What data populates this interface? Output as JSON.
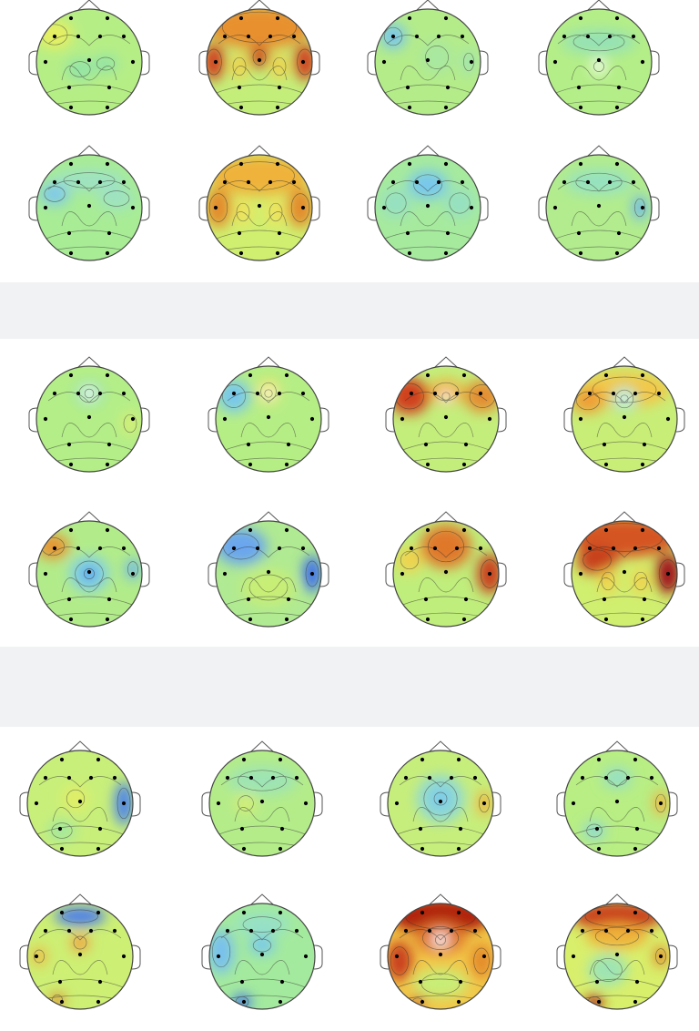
{
  "figure": {
    "panels": [
      {
        "rows": [
          [
            {
              "bg": "#b6ee86",
              "blobs": [
                {
                  "dx": -38,
                  "dy": -30,
                  "rx": 20,
                  "ry": 16,
                  "c": "#e7ef61"
                },
                {
                  "dx": -10,
                  "dy": 8,
                  "rx": 16,
                  "ry": 12,
                  "c": "#93e4a7"
                },
                {
                  "dx": 18,
                  "dy": 2,
                  "rx": 14,
                  "ry": 10,
                  "c": "#93e4a7"
                }
              ]
            },
            {
              "bg": "#c4ee7a",
              "blobs": [
                {
                  "dx": 0,
                  "dy": -38,
                  "rx": 58,
                  "ry": 24,
                  "c": "#e8902e"
                },
                {
                  "dx": -50,
                  "dy": 0,
                  "rx": 12,
                  "ry": 20,
                  "c": "#d0401e"
                },
                {
                  "dx": 50,
                  "dy": 0,
                  "rx": 12,
                  "ry": 20,
                  "c": "#d0401e"
                },
                {
                  "dx": 0,
                  "dy": -5,
                  "rx": 10,
                  "ry": 12,
                  "c": "#c9401c"
                },
                {
                  "dx": -22,
                  "dy": 5,
                  "rx": 10,
                  "ry": 14,
                  "c": "#f2d24c"
                },
                {
                  "dx": 22,
                  "dy": 5,
                  "rx": 10,
                  "ry": 14,
                  "c": "#f2d24c"
                }
              ]
            },
            {
              "bg": "#b4ec8a",
              "blobs": [
                {
                  "dx": -38,
                  "dy": -28,
                  "rx": 14,
                  "ry": 14,
                  "c": "#78c6ec"
                },
                {
                  "dx": 10,
                  "dy": -5,
                  "rx": 18,
                  "ry": 18,
                  "c": "#a8e8a0"
                },
                {
                  "dx": 45,
                  "dy": 0,
                  "rx": 8,
                  "ry": 14,
                  "c": "#a0e4b4"
                }
              ]
            },
            {
              "bg": "#b4ee88",
              "blobs": [
                {
                  "dx": 0,
                  "dy": -22,
                  "rx": 40,
                  "ry": 14,
                  "c": "#96e2b4"
                },
                {
                  "dx": 0,
                  "dy": 5,
                  "rx": 8,
                  "ry": 8,
                  "c": "#ffffff"
                }
              ]
            }
          ],
          [
            {
              "bg": "#a8ec96",
              "blobs": [
                {
                  "dx": -38,
                  "dy": -15,
                  "rx": 16,
                  "ry": 12,
                  "c": "#7ec8ec"
                },
                {
                  "dx": 0,
                  "dy": -30,
                  "rx": 40,
                  "ry": 12,
                  "c": "#9ee2c2"
                },
                {
                  "dx": 30,
                  "dy": -10,
                  "rx": 20,
                  "ry": 12,
                  "c": "#9ee2c2"
                }
              ]
            },
            {
              "bg": "#d0ef70",
              "blobs": [
                {
                  "dx": 0,
                  "dy": -35,
                  "rx": 55,
                  "ry": 22,
                  "c": "#efb23a"
                },
                {
                  "dx": -45,
                  "dy": 0,
                  "rx": 14,
                  "ry": 22,
                  "c": "#e38a2c"
                },
                {
                  "dx": 45,
                  "dy": 0,
                  "rx": 14,
                  "ry": 22,
                  "c": "#e38a2c"
                },
                {
                  "dx": -18,
                  "dy": 5,
                  "rx": 10,
                  "ry": 14,
                  "c": "#f2e25a"
                },
                {
                  "dx": 18,
                  "dy": 5,
                  "rx": 10,
                  "ry": 14,
                  "c": "#f2e25a"
                }
              ]
            },
            {
              "bg": "#a6ea9e",
              "blobs": [
                {
                  "dx": 0,
                  "dy": -25,
                  "rx": 22,
                  "ry": 16,
                  "c": "#78c8ec"
                },
                {
                  "dx": -35,
                  "dy": -5,
                  "rx": 16,
                  "ry": 16,
                  "c": "#96e0c2"
                },
                {
                  "dx": 35,
                  "dy": -5,
                  "rx": 16,
                  "ry": 16,
                  "c": "#96e0c2"
                }
              ]
            },
            {
              "bg": "#b2ec8e",
              "blobs": [
                {
                  "dx": 0,
                  "dy": -28,
                  "rx": 36,
                  "ry": 14,
                  "c": "#96e2c0"
                },
                {
                  "dx": 45,
                  "dy": 0,
                  "rx": 8,
                  "ry": 14,
                  "c": "#6cb6ee"
                }
              ]
            }
          ]
        ]
      },
      {
        "rows": [
          [
            {
              "bg": "#b4ee88",
              "blobs": [
                {
                  "dx": 0,
                  "dy": -28,
                  "rx": 16,
                  "ry": 14,
                  "c": "#96e2b4"
                },
                {
                  "dx": 0,
                  "dy": -28,
                  "rx": 7,
                  "ry": 7,
                  "c": "#ffffff"
                },
                {
                  "dx": 45,
                  "dy": 5,
                  "rx": 10,
                  "ry": 14,
                  "c": "#d4ee76"
                }
              ]
            },
            {
              "bg": "#b6ee86",
              "blobs": [
                {
                  "dx": -38,
                  "dy": -25,
                  "rx": 18,
                  "ry": 18,
                  "c": "#78c8ec"
                },
                {
                  "dx": 0,
                  "dy": -30,
                  "rx": 12,
                  "ry": 14,
                  "c": "#f2e25a"
                },
                {
                  "dx": 0,
                  "dy": -28,
                  "rx": 6,
                  "ry": 6,
                  "c": "#ffffff"
                }
              ]
            },
            {
              "bg": "#c4ee7c",
              "blobs": [
                {
                  "dx": -40,
                  "dy": -25,
                  "rx": 22,
                  "ry": 20,
                  "c": "#d0401e"
                },
                {
                  "dx": 40,
                  "dy": -25,
                  "rx": 20,
                  "ry": 18,
                  "c": "#e48e30"
                },
                {
                  "dx": 0,
                  "dy": -30,
                  "rx": 20,
                  "ry": 14,
                  "c": "#efb23a"
                },
                {
                  "dx": 0,
                  "dy": -25,
                  "rx": 6,
                  "ry": 6,
                  "c": "#ffffff"
                }
              ]
            },
            {
              "bg": "#c8ee78",
              "blobs": [
                {
                  "dx": 0,
                  "dy": -32,
                  "rx": 50,
                  "ry": 20,
                  "c": "#f2c848"
                },
                {
                  "dx": -40,
                  "dy": -20,
                  "rx": 18,
                  "ry": 14,
                  "c": "#ef9e34"
                },
                {
                  "dx": 0,
                  "dy": -22,
                  "rx": 14,
                  "ry": 14,
                  "c": "#9ee2c2"
                },
                {
                  "dx": 0,
                  "dy": -22,
                  "rx": 6,
                  "ry": 6,
                  "c": "#ffffff"
                }
              ]
            }
          ],
          [
            {
              "bg": "#b2ec8a",
              "blobs": [
                {
                  "dx": -40,
                  "dy": -30,
                  "rx": 18,
                  "ry": 14,
                  "c": "#e89432"
                },
                {
                  "dx": 0,
                  "dy": 0,
                  "rx": 22,
                  "ry": 20,
                  "c": "#84d2e4"
                },
                {
                  "dx": 0,
                  "dy": 0,
                  "rx": 8,
                  "ry": 8,
                  "c": "#4696ee"
                },
                {
                  "dx": 48,
                  "dy": -5,
                  "rx": 8,
                  "ry": 12,
                  "c": "#6cb6ee"
                }
              ]
            },
            {
              "bg": "#b0ea92",
              "blobs": [
                {
                  "dx": -30,
                  "dy": -30,
                  "rx": 28,
                  "ry": 20,
                  "c": "#6aa6ee"
                },
                {
                  "dx": 48,
                  "dy": 0,
                  "rx": 10,
                  "ry": 20,
                  "c": "#3a6aee"
                },
                {
                  "dx": 0,
                  "dy": 15,
                  "rx": 30,
                  "ry": 20,
                  "c": "#c8ee76"
                }
              ]
            },
            {
              "bg": "#c0ee7c",
              "blobs": [
                {
                  "dx": 0,
                  "dy": -30,
                  "rx": 28,
                  "ry": 24,
                  "c": "#e0782a"
                },
                {
                  "dx": 48,
                  "dy": 0,
                  "rx": 14,
                  "ry": 22,
                  "c": "#c9401c"
                },
                {
                  "dx": -40,
                  "dy": -15,
                  "rx": 14,
                  "ry": 14,
                  "c": "#f2d24c"
                }
              ]
            },
            {
              "bg": "#d0ef70",
              "blobs": [
                {
                  "dx": 0,
                  "dy": -40,
                  "rx": 60,
                  "ry": 22,
                  "c": "#d55424"
                },
                {
                  "dx": -30,
                  "dy": -15,
                  "rx": 22,
                  "ry": 16,
                  "c": "#c7401c"
                },
                {
                  "dx": 48,
                  "dy": 0,
                  "rx": 14,
                  "ry": 22,
                  "c": "#a0141a"
                },
                {
                  "dx": -18,
                  "dy": 8,
                  "rx": 10,
                  "ry": 14,
                  "c": "#f2d24c"
                },
                {
                  "dx": 18,
                  "dy": 8,
                  "rx": 10,
                  "ry": 14,
                  "c": "#f2d24c"
                }
              ]
            }
          ]
        ]
      },
      {
        "rows": [
          [
            {
              "bg": "#c8ef7a",
              "blobs": [
                {
                  "dx": 48,
                  "dy": 0,
                  "rx": 10,
                  "ry": 24,
                  "c": "#4a80ee"
                },
                {
                  "dx": -5,
                  "dy": -5,
                  "rx": 14,
                  "ry": 14,
                  "c": "#e2ee66"
                },
                {
                  "dx": -20,
                  "dy": 30,
                  "rx": 16,
                  "ry": 12,
                  "c": "#a4e89e"
                }
              ]
            },
            {
              "bg": "#b4ec8a",
              "blobs": [
                {
                  "dx": 0,
                  "dy": -25,
                  "rx": 38,
                  "ry": 16,
                  "c": "#9ee4b4"
                },
                {
                  "dx": -18,
                  "dy": 0,
                  "rx": 12,
                  "ry": 12,
                  "c": "#d4ee76"
                }
              ]
            },
            {
              "bg": "#c6ee7c",
              "blobs": [
                {
                  "dx": 0,
                  "dy": -5,
                  "rx": 26,
                  "ry": 26,
                  "c": "#8ed8d6"
                },
                {
                  "dx": 0,
                  "dy": -5,
                  "rx": 10,
                  "ry": 10,
                  "c": "#78c8ec"
                },
                {
                  "dx": 48,
                  "dy": 0,
                  "rx": 8,
                  "ry": 14,
                  "c": "#f2b23e"
                }
              ]
            },
            {
              "bg": "#b8ee84",
              "blobs": [
                {
                  "dx": 0,
                  "dy": -28,
                  "rx": 16,
                  "ry": 12,
                  "c": "#96e0c4"
                },
                {
                  "dx": 48,
                  "dy": 0,
                  "rx": 8,
                  "ry": 14,
                  "c": "#f2b23e"
                },
                {
                  "dx": -25,
                  "dy": 30,
                  "rx": 12,
                  "ry": 10,
                  "c": "#8ed8d6"
                }
              ]
            }
          ],
          [
            {
              "bg": "#cdef74",
              "blobs": [
                {
                  "dx": 0,
                  "dy": -44,
                  "rx": 28,
                  "ry": 10,
                  "c": "#4a7aee"
                },
                {
                  "dx": 0,
                  "dy": -15,
                  "rx": 10,
                  "ry": 10,
                  "c": "#f2a040"
                },
                {
                  "dx": -45,
                  "dy": 0,
                  "rx": 8,
                  "ry": 10,
                  "c": "#f2b23e"
                },
                {
                  "dx": -25,
                  "dy": 48,
                  "rx": 8,
                  "ry": 8,
                  "c": "#e28a2c"
                }
              ]
            },
            {
              "bg": "#a4ea9e",
              "blobs": [
                {
                  "dx": -45,
                  "dy": -5,
                  "rx": 14,
                  "ry": 24,
                  "c": "#78c0ee"
                },
                {
                  "dx": 0,
                  "dy": -12,
                  "rx": 14,
                  "ry": 10,
                  "c": "#78c8ec"
                },
                {
                  "dx": -22,
                  "dy": 50,
                  "rx": 10,
                  "ry": 8,
                  "c": "#3a6aee"
                },
                {
                  "dx": 0,
                  "dy": -35,
                  "rx": 30,
                  "ry": 12,
                  "c": "#96e0c8"
                }
              ]
            },
            {
              "bg": "#f2c848",
              "blobs": [
                {
                  "dx": 0,
                  "dy": -44,
                  "rx": 55,
                  "ry": 20,
                  "c": "#b02010"
                },
                {
                  "dx": 0,
                  "dy": -20,
                  "rx": 28,
                  "ry": 18,
                  "c": "#e0782a"
                },
                {
                  "dx": 0,
                  "dy": -18,
                  "rx": 8,
                  "ry": 8,
                  "c": "#ffffff"
                },
                {
                  "dx": -45,
                  "dy": 5,
                  "rx": 14,
                  "ry": 22,
                  "c": "#c9401c"
                },
                {
                  "dx": 45,
                  "dy": 5,
                  "rx": 12,
                  "ry": 20,
                  "c": "#e38a2c"
                },
                {
                  "dx": 0,
                  "dy": 30,
                  "rx": 30,
                  "ry": 16,
                  "c": "#c8ee78"
                },
                {
                  "dx": -25,
                  "dy": 50,
                  "rx": 8,
                  "ry": 6,
                  "c": "#c9401c"
                }
              ]
            },
            {
              "bg": "#d8ef6c",
              "blobs": [
                {
                  "dx": 0,
                  "dy": -44,
                  "rx": 50,
                  "ry": 16,
                  "c": "#c9401c"
                },
                {
                  "dx": 0,
                  "dy": -22,
                  "rx": 34,
                  "ry": 14,
                  "c": "#efb23a"
                },
                {
                  "dx": -10,
                  "dy": 15,
                  "rx": 22,
                  "ry": 18,
                  "c": "#9ee4b4"
                },
                {
                  "dx": 48,
                  "dy": 0,
                  "rx": 8,
                  "ry": 12,
                  "c": "#e28a2c"
                },
                {
                  "dx": -25,
                  "dy": 50,
                  "rx": 10,
                  "ry": 8,
                  "c": "#b02010"
                }
              ]
            }
          ]
        ]
      }
    ]
  }
}
